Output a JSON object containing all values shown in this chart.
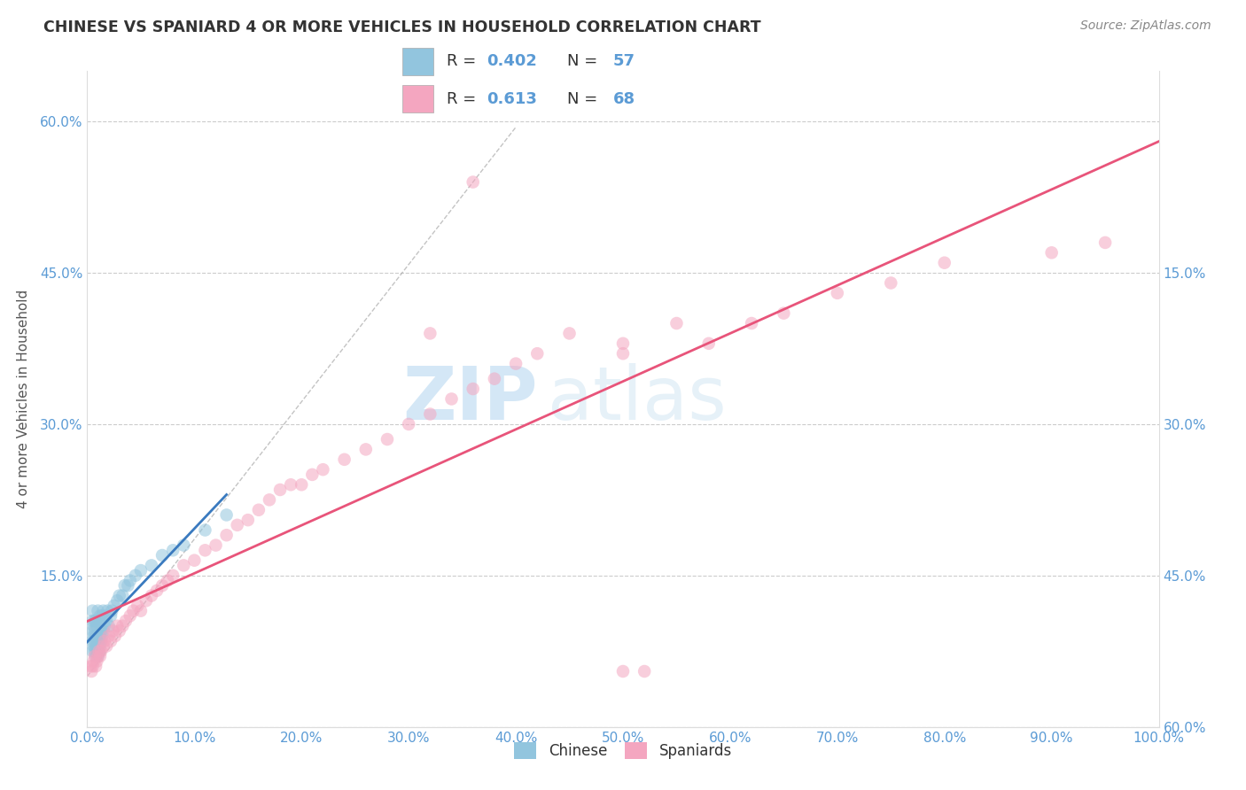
{
  "title": "CHINESE VS SPANIARD 4 OR MORE VEHICLES IN HOUSEHOLD CORRELATION CHART",
  "source": "Source: ZipAtlas.com",
  "ylabel": "4 or more Vehicles in Household",
  "xlim": [
    0,
    1.0
  ],
  "ylim": [
    0,
    0.65
  ],
  "xticklabels": [
    "0.0%",
    "10.0%",
    "20.0%",
    "30.0%",
    "40.0%",
    "50.0%",
    "60.0%",
    "70.0%",
    "80.0%",
    "90.0%",
    "100.0%"
  ],
  "yticklabels_left": [
    "",
    "15.0%",
    "30.0%",
    "45.0%",
    "60.0%"
  ],
  "yticklabels_right": [
    "60.0%",
    "45.0%",
    "30.0%",
    "15.0%",
    ""
  ],
  "chinese_R": "0.402",
  "chinese_N": "57",
  "spaniard_R": "0.613",
  "spaniard_N": "68",
  "chinese_color": "#92c5de",
  "spaniard_color": "#f4a6c0",
  "chinese_line_color": "#3a7abf",
  "spaniard_line_color": "#e8547a",
  "watermark_zip": "ZIP",
  "watermark_atlas": "atlas",
  "chinese_x": [
    0.005,
    0.005,
    0.005,
    0.005,
    0.005,
    0.006,
    0.006,
    0.006,
    0.007,
    0.007,
    0.007,
    0.007,
    0.008,
    0.008,
    0.008,
    0.008,
    0.009,
    0.009,
    0.009,
    0.01,
    0.01,
    0.01,
    0.01,
    0.011,
    0.011,
    0.011,
    0.012,
    0.012,
    0.012,
    0.013,
    0.013,
    0.014,
    0.014,
    0.015,
    0.015,
    0.016,
    0.017,
    0.018,
    0.019,
    0.02,
    0.022,
    0.023,
    0.025,
    0.028,
    0.03,
    0.033,
    0.035,
    0.038,
    0.04,
    0.045,
    0.05,
    0.06,
    0.07,
    0.08,
    0.09,
    0.11,
    0.13
  ],
  "chinese_y": [
    0.075,
    0.085,
    0.095,
    0.105,
    0.115,
    0.08,
    0.09,
    0.1,
    0.075,
    0.085,
    0.095,
    0.105,
    0.07,
    0.08,
    0.09,
    0.105,
    0.075,
    0.085,
    0.1,
    0.07,
    0.08,
    0.09,
    0.115,
    0.075,
    0.085,
    0.105,
    0.08,
    0.09,
    0.11,
    0.085,
    0.095,
    0.09,
    0.11,
    0.095,
    0.115,
    0.1,
    0.11,
    0.105,
    0.115,
    0.1,
    0.11,
    0.115,
    0.12,
    0.125,
    0.13,
    0.13,
    0.14,
    0.14,
    0.145,
    0.15,
    0.155,
    0.16,
    0.17,
    0.175,
    0.18,
    0.195,
    0.21
  ],
  "spaniard_x": [
    0.003,
    0.004,
    0.005,
    0.006,
    0.007,
    0.008,
    0.009,
    0.01,
    0.011,
    0.012,
    0.013,
    0.015,
    0.016,
    0.018,
    0.02,
    0.022,
    0.024,
    0.026,
    0.028,
    0.03,
    0.033,
    0.036,
    0.04,
    0.043,
    0.047,
    0.05,
    0.055,
    0.06,
    0.065,
    0.07,
    0.075,
    0.08,
    0.09,
    0.1,
    0.11,
    0.12,
    0.13,
    0.14,
    0.15,
    0.16,
    0.17,
    0.18,
    0.19,
    0.2,
    0.21,
    0.22,
    0.24,
    0.26,
    0.28,
    0.3,
    0.32,
    0.34,
    0.36,
    0.38,
    0.4,
    0.42,
    0.45,
    0.5,
    0.52,
    0.55,
    0.58,
    0.62,
    0.65,
    0.7,
    0.75,
    0.8,
    0.9,
    0.95
  ],
  "spaniard_y": [
    0.06,
    0.055,
    0.06,
    0.065,
    0.07,
    0.06,
    0.065,
    0.07,
    0.075,
    0.07,
    0.075,
    0.08,
    0.085,
    0.08,
    0.09,
    0.085,
    0.095,
    0.09,
    0.1,
    0.095,
    0.1,
    0.105,
    0.11,
    0.115,
    0.12,
    0.115,
    0.125,
    0.13,
    0.135,
    0.14,
    0.145,
    0.15,
    0.16,
    0.165,
    0.175,
    0.18,
    0.19,
    0.2,
    0.205,
    0.215,
    0.225,
    0.235,
    0.24,
    0.24,
    0.25,
    0.255,
    0.265,
    0.275,
    0.285,
    0.3,
    0.31,
    0.325,
    0.335,
    0.345,
    0.36,
    0.37,
    0.39,
    0.37,
    0.055,
    0.4,
    0.38,
    0.4,
    0.41,
    0.43,
    0.44,
    0.46,
    0.47,
    0.48
  ],
  "spaniard_outlier_x": [
    0.5
  ],
  "spaniard_outlier_y": [
    0.055
  ],
  "spaniard_top_x": [
    0.36
  ],
  "spaniard_top_y": [
    0.54
  ],
  "spaniard_high1_x": [
    0.32
  ],
  "spaniard_high1_y": [
    0.39
  ],
  "spaniard_high2_x": [
    0.5
  ],
  "spaniard_high2_y": [
    0.38
  ],
  "spaniard_high3_x": [
    0.9
  ],
  "spaniard_high3_y": [
    0.46
  ]
}
